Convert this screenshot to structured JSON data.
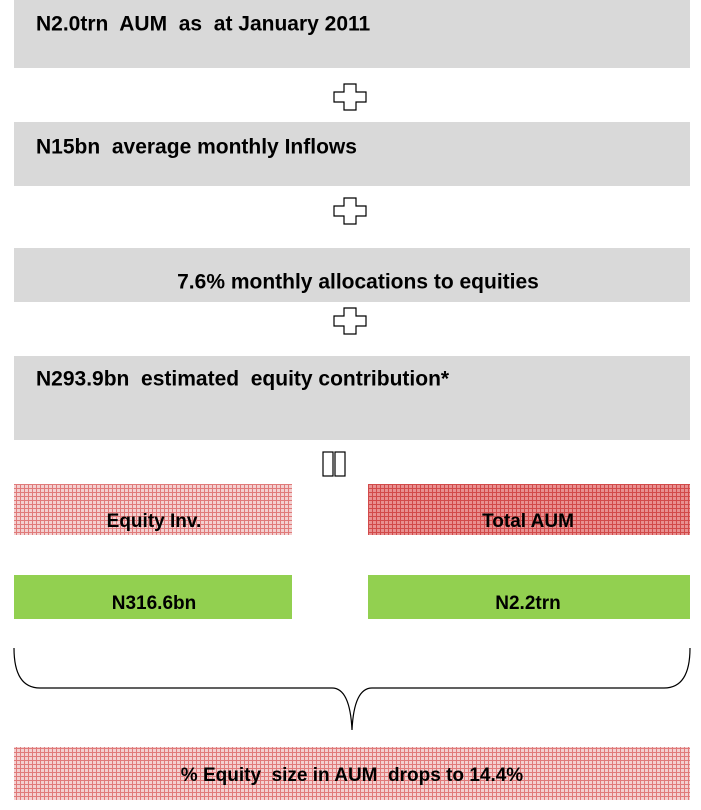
{
  "steps": [
    "N2.0trn  AUM  as  at January 2011",
    "N15bn  average monthly Inflows",
    "7.6% monthly allocations to equities",
    "N293.9bn  estimated  equity contribution*"
  ],
  "results": {
    "headers": [
      "Equity Inv.",
      "Total AUM"
    ],
    "values": [
      "N316.6bn",
      "N2.2trn"
    ]
  },
  "conclusion": "% Equity  size in AUM  drops to 14.4%"
}
